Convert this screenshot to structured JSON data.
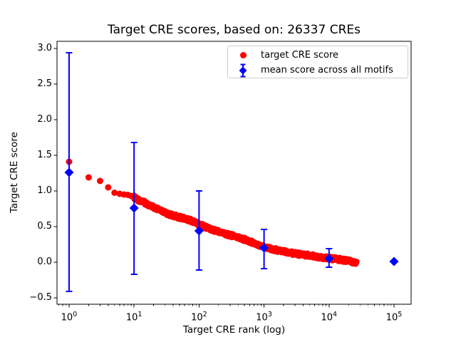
{
  "figure": {
    "background": "#ffffff"
  },
  "chart_data": {
    "type": "scatter",
    "title": "Target CRE scores, based on: 26337 CREs",
    "xlabel": "Target CRE rank (log)",
    "ylabel": "Target CRE score",
    "x_scale": "log",
    "grid": false,
    "xlim_log10": [
      -0.186,
      5.263
    ],
    "ylim": [
      -0.59,
      3.1
    ],
    "x_ticks": [
      {
        "base": "10",
        "exponent": "0",
        "value": 0
      },
      {
        "base": "10",
        "exponent": "1",
        "value": 1
      },
      {
        "base": "10",
        "exponent": "2",
        "value": 2
      },
      {
        "base": "10",
        "exponent": "3",
        "value": 3
      },
      {
        "base": "10",
        "exponent": "4",
        "value": 4
      },
      {
        "base": "10",
        "exponent": "5",
        "value": 5
      }
    ],
    "y_ticks": [
      {
        "label": "3.0",
        "value": 3.0
      },
      {
        "label": "2.5",
        "value": 2.5
      },
      {
        "label": "2.0",
        "value": 2.0
      },
      {
        "label": "1.5",
        "value": 1.5
      },
      {
        "label": "1.0",
        "value": 1.0
      },
      {
        "label": "0.5",
        "value": 0.5
      },
      {
        "label": "0.0",
        "value": 0.0
      },
      {
        "label": "−0.5",
        "value": -0.5
      }
    ],
    "series": [
      {
        "name": "target CRE score",
        "color": "#ff0000",
        "marker": "circle",
        "n_points": 26337,
        "description": "scores sorted descending by rank; dense overlapping markers form a band",
        "curve_anchors": {
          "rank": [
            1,
            2,
            3,
            4,
            5,
            6,
            7,
            8,
            9,
            10,
            12,
            15,
            20,
            27,
            35,
            50,
            66,
            80,
            100,
            130,
            170,
            250,
            360,
            500,
            700,
            1000,
            1400,
            2000,
            3000,
            5000,
            7000,
            10000,
            14000,
            20000,
            26337
          ],
          "score": [
            1.41,
            1.19,
            1.14,
            1.05,
            0.975,
            0.96,
            0.95,
            0.945,
            0.93,
            0.91,
            0.87,
            0.83,
            0.77,
            0.71,
            0.67,
            0.63,
            0.6,
            0.575,
            0.53,
            0.49,
            0.45,
            0.4,
            0.36,
            0.32,
            0.27,
            0.215,
            0.18,
            0.15,
            0.12,
            0.095,
            0.075,
            0.055,
            0.04,
            0.02,
            -0.005
          ]
        }
      },
      {
        "name": "mean score across all motifs",
        "color": "#0000ff",
        "marker": "diamond",
        "x": [
          1,
          10,
          100,
          1000,
          10000,
          100000
        ],
        "mean": [
          1.26,
          0.76,
          0.44,
          0.2,
          0.05,
          0.01
        ],
        "err_low": [
          -0.41,
          -0.17,
          -0.11,
          -0.09,
          -0.07,
          0.01
        ],
        "err_high": [
          2.94,
          1.68,
          1.0,
          0.46,
          0.19,
          0.01
        ]
      }
    ],
    "legend_position": "upper right"
  },
  "legend": {
    "items": [
      {
        "label": "target CRE score",
        "marker": "circle",
        "color": "#ff0000"
      },
      {
        "label": "mean score across all motifs",
        "marker": "diamond-errorbar",
        "color": "#0000ff"
      }
    ]
  }
}
